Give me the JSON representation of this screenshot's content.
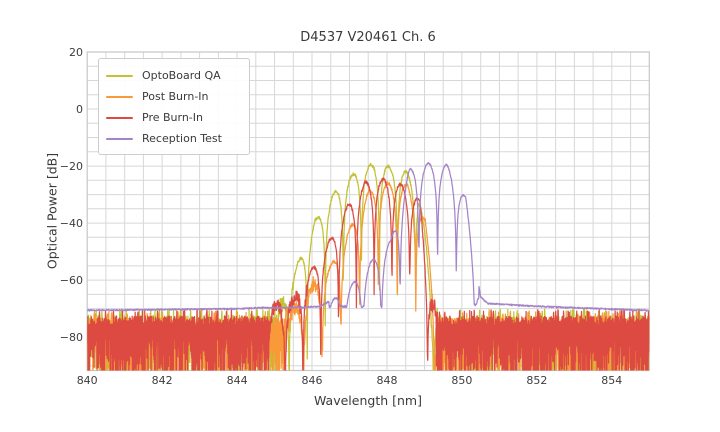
{
  "chart_data": {
    "type": "line",
    "title": "D4537 V20461 Ch. 6",
    "xlabel": "Wavelength [nm]",
    "ylabel": "Optical Power [dB]",
    "xlim": [
      840,
      855
    ],
    "ylim": [
      -91.7,
      20
    ],
    "xticks": [
      840,
      842,
      844,
      846,
      848,
      850,
      852,
      854
    ],
    "yticks": [
      20,
      0,
      -20,
      -40,
      -60,
      -80
    ],
    "ytick_labels": [
      "20",
      "0",
      "−20",
      "−40",
      "−60",
      "−80"
    ],
    "grid": {
      "x_step": 0.5,
      "y_step": 5,
      "color": "#d7d7d7",
      "spine_color": "#c6c6c6"
    },
    "legend_position": "upper left",
    "background": "#ffffff",
    "noise_seed": 20461,
    "series": [
      {
        "name": "OptoBoard QA",
        "color": "#c2c234",
        "envelope_points": [
          [
            845.1,
            -71
          ],
          [
            845.62,
            -54
          ],
          [
            846.08,
            -39
          ],
          [
            846.66,
            -28
          ],
          [
            847.2,
            -21.5
          ],
          [
            847.68,
            -19
          ],
          [
            848.13,
            -20.5
          ],
          [
            848.48,
            -21.5
          ],
          [
            848.85,
            -27.5
          ],
          [
            849.05,
            -48
          ],
          [
            849.2,
            -68
          ],
          [
            849.35,
            -72
          ]
        ],
        "fringe": {
          "spacing": 0.482,
          "phase": 845.63,
          "dip_depth_db": [
            26,
            48
          ]
        },
        "noise_regions": [
          [
            840,
            845.1
          ],
          [
            849.35,
            855
          ]
        ],
        "noise_top_db": -72.3
      },
      {
        "name": "Post Burn-In",
        "color": "#f9993a",
        "envelope_points": [
          [
            845.3,
            -72
          ],
          [
            845.55,
            -70
          ],
          [
            846.0,
            -62
          ],
          [
            846.5,
            -55
          ],
          [
            847.0,
            -42
          ],
          [
            847.52,
            -28.5
          ],
          [
            848.02,
            -26
          ],
          [
            848.55,
            -26.5
          ],
          [
            849.02,
            -39
          ],
          [
            849.2,
            -58
          ],
          [
            849.3,
            -72
          ]
        ],
        "fringe": {
          "spacing": 0.5,
          "phase": 846.52,
          "dip_depth_db": [
            26,
            48
          ]
        },
        "noise_regions": [
          [
            840,
            845.3
          ],
          [
            849.3,
            855
          ]
        ],
        "noise_top_db": -73.2
      },
      {
        "name": "Pre Burn-In",
        "color": "#dc4a41",
        "envelope_points": [
          [
            844.85,
            -70
          ],
          [
            845.1,
            -68.5
          ],
          [
            845.55,
            -66
          ],
          [
            846.0,
            -56
          ],
          [
            846.47,
            -46
          ],
          [
            846.94,
            -34
          ],
          [
            847.42,
            -25.5
          ],
          [
            847.9,
            -24.5
          ],
          [
            848.38,
            -26.5
          ],
          [
            848.88,
            -32
          ],
          [
            849.1,
            -60
          ],
          [
            849.32,
            -72
          ]
        ],
        "fringe": {
          "spacing": 0.475,
          "phase": 845.52,
          "dip_depth_db": [
            26,
            48
          ]
        },
        "noise_regions": [
          [
            840,
            844.85
          ],
          [
            849.32,
            855
          ]
        ],
        "noise_top_db": -72.6
      },
      {
        "name": "Reception Test",
        "color": "#a484c8",
        "envelope_points": [
          [
            840,
            -70.6
          ],
          [
            841,
            -70.5
          ],
          [
            842,
            -70.35
          ],
          [
            843,
            -70.2
          ],
          [
            844,
            -70.1
          ],
          [
            844.7,
            -69.7
          ],
          [
            845.2,
            -69.8
          ],
          [
            845.7,
            -69.6
          ],
          [
            846.2,
            -69.3
          ],
          [
            846.6,
            -66.5
          ],
          [
            847.1,
            -61
          ],
          [
            847.6,
            -53
          ],
          [
            848.1,
            -46
          ],
          [
            848.6,
            -21
          ],
          [
            849.1,
            -19
          ],
          [
            849.6,
            -19.5
          ],
          [
            850.1,
            -31
          ],
          [
            850.28,
            -48
          ],
          [
            850.5,
            -66
          ],
          [
            850.7,
            -68.2
          ],
          [
            851.5,
            -68.9
          ],
          [
            852.5,
            -69.5
          ],
          [
            853.5,
            -70.0
          ],
          [
            855,
            -70.8
          ]
        ],
        "fringe": {
          "spacing": 0.5,
          "phase": 848.6,
          "band": [
            846.45,
            850.45
          ],
          "dip_depth_db": [
            26,
            36
          ]
        },
        "floor_points": [
          [
            840,
            -70.9
          ],
          [
            842,
            -70.6
          ],
          [
            844,
            -70.3
          ],
          [
            845,
            -70.0
          ],
          [
            846,
            -69.6
          ],
          [
            846.6,
            -69.2
          ],
          [
            847.5,
            -69.3
          ],
          [
            848.3,
            -69.6
          ],
          [
            849.0,
            -69.8
          ],
          [
            850.4,
            -68.6
          ],
          [
            850.6,
            -68.3
          ],
          [
            851.5,
            -69.0
          ],
          [
            852.5,
            -69.6
          ],
          [
            853.5,
            -70.1
          ],
          [
            855,
            -70.8
          ]
        ],
        "noise_regions": [],
        "ripple_db": 0.55
      }
    ]
  }
}
